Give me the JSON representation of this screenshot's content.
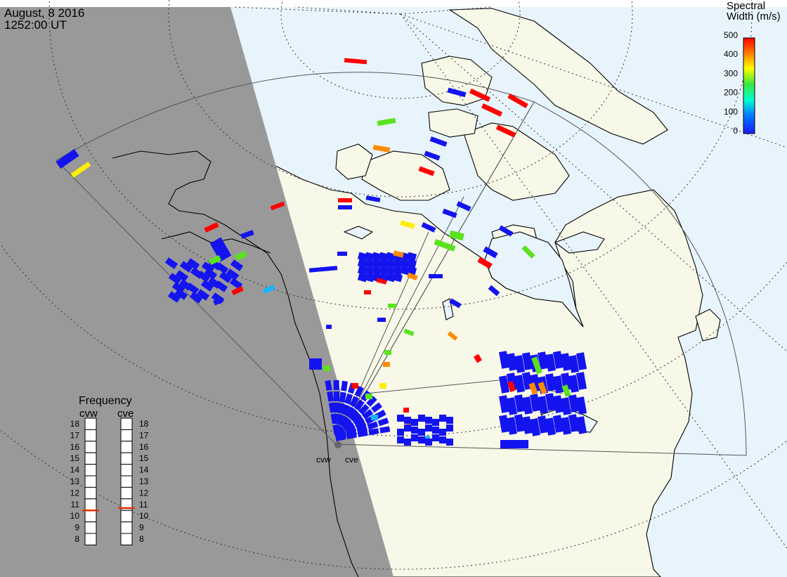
{
  "header": {
    "date": "August, 8 2016",
    "time": "1252:00 UT"
  },
  "colorbar": {
    "title_line1": "Spectral",
    "title_line2": "Width (m/s)",
    "ticks": [
      "500",
      "400",
      "300",
      "200",
      "100",
      "0"
    ],
    "stops": [
      "#ff0000",
      "#ff8c00",
      "#ffff00",
      "#3ce83c",
      "#00ffd0",
      "#0050ff",
      "#1a1aff"
    ]
  },
  "frequency": {
    "title": "Frequency",
    "left_label": "cvw",
    "right_label": "cve",
    "scale": [
      "18",
      "17",
      "16",
      "15",
      "14",
      "13",
      "12",
      "11",
      "10",
      "9",
      "8"
    ],
    "cvw_mhz": 10.5,
    "cve_mhz": 10.7,
    "marker_color": "#dd3300"
  },
  "stations": {
    "west": "cvw",
    "east": "cve"
  },
  "colors": {
    "night": "#999999",
    "ocean": "#e8f4fc",
    "land": "#f8f8e8",
    "blue": "#1414f0",
    "red": "#ff0000",
    "yellow": "#ffee00",
    "green": "#5ae21e",
    "orange": "#ff8c00",
    "cyan": "#19b4ff"
  }
}
